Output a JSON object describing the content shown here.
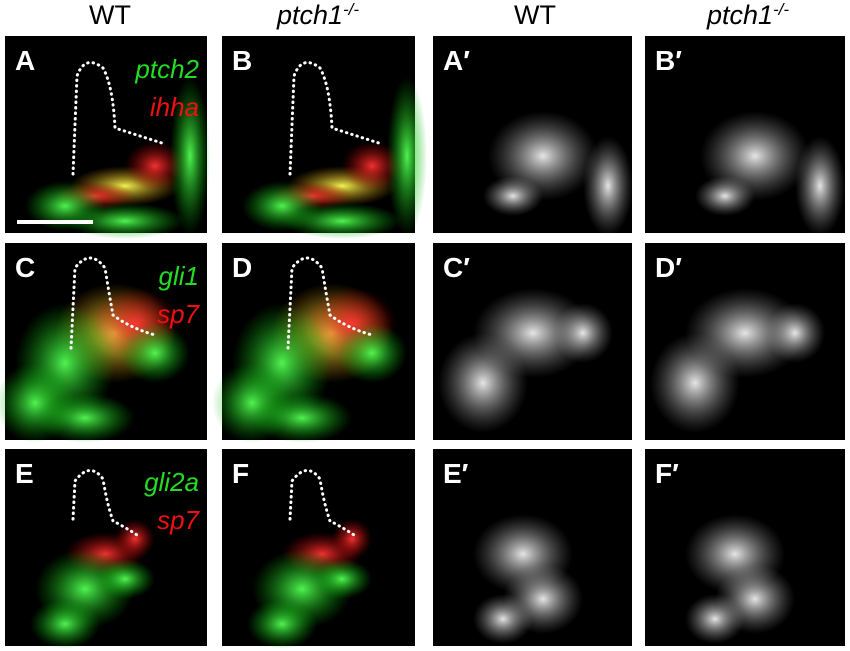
{
  "headers": [
    {
      "text": "WT"
    },
    {
      "text": "ptch1",
      "sup": "-/-"
    },
    {
      "text": "WT"
    },
    {
      "text": "ptch1",
      "sup": "-/-"
    }
  ],
  "rows": [
    {
      "panels": [
        "A",
        "B",
        "A′",
        "B′"
      ],
      "green": "ptch2",
      "red": "ihha"
    },
    {
      "panels": [
        "C",
        "D",
        "C′",
        "D′"
      ],
      "green": "gli1",
      "red": "sp7"
    },
    {
      "panels": [
        "E",
        "F",
        "E′",
        "F′"
      ],
      "green": "gli2a",
      "red": "sp7"
    }
  ]
}
